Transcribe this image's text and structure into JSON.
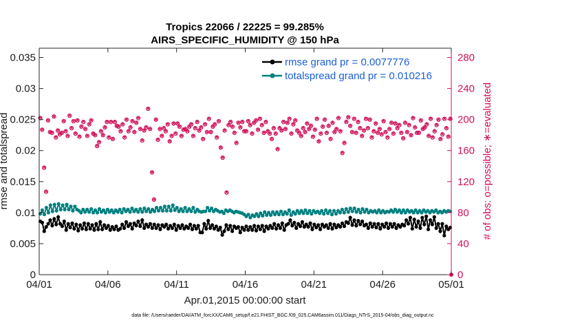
{
  "chart_data": {
    "type": "line",
    "title": "Tropics 22066 / 22225 = 99.285%",
    "subtitle": "AIRS_SPECIFIC_HUMIDITY @ 150 hPa",
    "xlabel": "Apr.01,2015 00:00:00 start",
    "ylabel": "rmse and totalspread",
    "ylabel_right": "# of obs: o=possible; ∗=evaluated",
    "footnote": "data file: /Users/raeder/DAI/ATM_forcXX/CAM6_setup/f.e21.FHIST_BGC.f09_025.CAM6assim.011/Diags_NTrS_2015-04/obs_diag_output.nc",
    "x_ticks": [
      "04/01",
      "04/06",
      "04/11",
      "04/16",
      "04/21",
      "04/26",
      "05/01"
    ],
    "x_range_days": [
      0,
      30
    ],
    "ylim_left": [
      0,
      0.0365
    ],
    "y_ticks_left": [
      "0",
      "0.005",
      "0.01",
      "0.015",
      "0.02",
      "0.025",
      "0.03",
      "0.035"
    ],
    "ylim_right": [
      0,
      292
    ],
    "y_ticks_right": [
      "0",
      "40",
      "80",
      "120",
      "160",
      "200",
      "240",
      "280"
    ],
    "series": [
      {
        "name": "rmse grand pr = 0.0077776",
        "color": "#000000",
        "axis": "left",
        "values": [
          0.0086,
          0.0084,
          0.007,
          0.0077,
          0.0082,
          0.0088,
          0.0079,
          0.009,
          0.0081,
          0.0093,
          0.0082,
          0.0078,
          0.0086,
          0.0072,
          0.0082,
          0.0076,
          0.0083,
          0.0074,
          0.0081,
          0.0071,
          0.008,
          0.0074,
          0.0083,
          0.0073,
          0.0082,
          0.0074,
          0.008,
          0.0072,
          0.0082,
          0.0073,
          0.0085,
          0.0073,
          0.008,
          0.0075,
          0.0079,
          0.0072,
          0.0077,
          0.0073,
          0.0078,
          0.0072,
          0.0074,
          0.0081,
          0.0075,
          0.0085,
          0.0078,
          0.0082,
          0.0074,
          0.0083,
          0.0079,
          0.0086,
          0.0078,
          0.0088,
          0.0075,
          0.0081,
          0.0077,
          0.0082,
          0.0075,
          0.0081,
          0.0075,
          0.008,
          0.0073,
          0.008,
          0.0077,
          0.0081,
          0.0074,
          0.0079,
          0.0075,
          0.0081,
          0.0072,
          0.0079,
          0.0075,
          0.008,
          0.0074,
          0.0078,
          0.0075,
          0.0081,
          0.0073,
          0.0079,
          0.0074,
          0.0079,
          0.0068,
          0.0068,
          0.0082,
          0.0074,
          0.0087,
          0.0075,
          0.008,
          0.0074,
          0.0078,
          0.0072,
          0.0076,
          0.0064,
          0.007,
          0.008,
          0.0073,
          0.0079,
          0.007,
          0.0078,
          0.0075,
          0.0077,
          0.0068,
          0.0076,
          0.0072,
          0.0078,
          0.0072,
          0.0077,
          0.0072,
          0.0079,
          0.0071,
          0.0078,
          0.0073,
          0.0079,
          0.007,
          0.0078,
          0.0074,
          0.0079,
          0.0075,
          0.0082,
          0.0074,
          0.008,
          0.0075,
          0.0083,
          0.0072,
          0.008,
          0.0082,
          0.0088,
          0.0079,
          0.0084,
          0.0075,
          0.0082,
          0.0078,
          0.0085,
          0.0077,
          0.0081,
          0.0077,
          0.0083,
          0.0073,
          0.0081,
          0.0076,
          0.008,
          0.0073,
          0.0081,
          0.0077,
          0.008,
          0.0075,
          0.0082,
          0.0074,
          0.0081,
          0.0076,
          0.008,
          0.0077,
          0.0083,
          0.0078,
          0.0085,
          0.0083,
          0.0092,
          0.008,
          0.0088,
          0.0079,
          0.0087,
          0.0081,
          0.0086,
          0.0079,
          0.0081,
          0.0075,
          0.0083,
          0.0077,
          0.0082,
          0.0076,
          0.0082,
          0.0074,
          0.0081,
          0.0077,
          0.0083,
          0.0075,
          0.0082,
          0.0077,
          0.0082,
          0.0075,
          0.008,
          0.0077,
          0.0081,
          0.0079,
          0.0088,
          0.0082,
          0.0092,
          0.0074,
          0.0089,
          0.0077,
          0.0086,
          0.0075,
          0.0092,
          0.0081,
          0.0094,
          0.0073,
          0.0088,
          0.0081,
          0.0093,
          0.0075,
          0.0082,
          0.007,
          0.0082,
          0.0063,
          0.0078,
          0.0073,
          0.0076
        ]
      },
      {
        "name": "totalspread grand pr = 0.010216",
        "color": "#008080",
        "axis": "left",
        "values": [
          0.0098,
          0.0104,
          0.0097,
          0.0108,
          0.01,
          0.0112,
          0.0102,
          0.0113,
          0.0103,
          0.0114,
          0.0105,
          0.0112,
          0.0105,
          0.0113,
          0.0105,
          0.011,
          0.0103,
          0.011,
          0.0105,
          0.0103,
          0.01,
          0.0105,
          0.0101,
          0.0105,
          0.0101,
          0.0106,
          0.01,
          0.0104,
          0.01,
          0.0106,
          0.0101,
          0.0104,
          0.01,
          0.0105,
          0.0101,
          0.0104,
          0.01,
          0.0104,
          0.0101,
          0.0105,
          0.01,
          0.0106,
          0.0102,
          0.0105,
          0.0101,
          0.0107,
          0.0102,
          0.0105,
          0.0101,
          0.0106,
          0.0101,
          0.0107,
          0.0102,
          0.0106,
          0.0101,
          0.0105,
          0.0102,
          0.0108,
          0.0103,
          0.0108,
          0.0103,
          0.011,
          0.0103,
          0.011,
          0.0103,
          0.0112,
          0.0104,
          0.0108,
          0.0102,
          0.0106,
          0.0102,
          0.0108,
          0.0102,
          0.0106,
          0.0102,
          0.0108,
          0.0101,
          0.0105,
          0.0102,
          0.0101,
          0.0102,
          0.0102,
          0.0108,
          0.0103,
          0.0107,
          0.0102,
          0.0105,
          0.0103,
          0.0101,
          0.0102,
          0.0099,
          0.0104,
          0.0102,
          0.0104,
          0.0102,
          0.01,
          0.0102,
          0.0101,
          0.01,
          0.0099,
          0.0097,
          0.0094,
          0.0097,
          0.0092,
          0.0096,
          0.0094,
          0.0098,
          0.0094,
          0.0099,
          0.0095,
          0.0101,
          0.0096,
          0.01,
          0.0096,
          0.0101,
          0.0097,
          0.0101,
          0.0097,
          0.0102,
          0.0097,
          0.0101,
          0.0098,
          0.0104,
          0.0096,
          0.0101,
          0.0098,
          0.0103,
          0.0099,
          0.0103,
          0.0099,
          0.0104,
          0.0099,
          0.0103,
          0.0098,
          0.0103,
          0.01,
          0.0102,
          0.0099,
          0.0103,
          0.0098,
          0.0104,
          0.0099,
          0.0103,
          0.0097,
          0.0103,
          0.0098,
          0.0103,
          0.01,
          0.0105,
          0.01,
          0.0106,
          0.0101,
          0.0107,
          0.0102,
          0.0107,
          0.0101,
          0.0105,
          0.01,
          0.0106,
          0.0101,
          0.0105,
          0.01,
          0.0103,
          0.0101,
          0.0103,
          0.01,
          0.0104,
          0.01,
          0.0103,
          0.01,
          0.0102,
          0.0101,
          0.0104,
          0.0101,
          0.0105,
          0.0101,
          0.0104,
          0.01,
          0.0104,
          0.01,
          0.0104,
          0.0101,
          0.0103,
          0.01,
          0.0104,
          0.01,
          0.0103,
          0.01,
          0.0104,
          0.0101,
          0.0103,
          0.01,
          0.0103,
          0.0101,
          0.0104,
          0.01,
          0.0102,
          0.01,
          0.0103,
          0.0101,
          0.0103,
          0.0102
        ]
      }
    ],
    "obs_counts": {
      "axis": "right",
      "color": "#d0105a",
      "possible_marker": "o",
      "evaluated_marker": "*",
      "values": [
        201,
        186,
        137,
        106,
        198,
        183,
        182,
        203,
        176,
        185,
        180,
        182,
        197,
        184,
        178,
        204,
        188,
        197,
        181,
        198,
        177,
        190,
        196,
        187,
        178,
        193,
        198,
        181,
        179,
        165,
        170,
        184,
        179,
        189,
        196,
        176,
        196,
        174,
        196,
        191,
        190,
        184,
        193,
        176,
        199,
        184,
        189,
        197,
        183,
        195,
        201,
        187,
        172,
        185,
        189,
        213,
        187,
        131,
        96,
        199,
        173,
        187,
        178,
        188,
        184,
        193,
        171,
        178,
        194,
        181,
        194,
        190,
        178,
        186,
        187,
        184,
        190,
        193,
        178,
        188,
        196,
        185,
        189,
        174,
        193,
        183,
        200,
        183,
        190,
        193,
        176,
        197,
        163,
        150,
        185,
        105,
        192,
        196,
        190,
        182,
        169,
        195,
        189,
        196,
        184,
        184,
        197,
        192,
        181,
        195,
        198,
        186,
        200,
        192,
        182,
        196,
        184,
        181,
        174,
        188,
        181,
        161,
        188,
        185,
        196,
        187,
        195,
        200,
        181,
        193,
        198,
        185,
        182,
        178,
        188,
        183,
        194,
        187,
        191,
        177,
        186,
        200,
        171,
        181,
        190,
        199,
        182,
        191,
        174,
        195,
        183,
        187,
        201,
        184,
        156,
        169,
        196,
        202,
        191,
        183,
        200,
        182,
        196,
        188,
        178,
        185,
        200,
        188,
        199,
        176,
        184,
        194,
        182,
        187,
        180,
        197,
        183,
        176,
        187,
        195,
        181,
        194,
        188,
        192,
        182,
        175,
        195,
        183,
        192,
        179,
        201,
        189,
        182,
        182,
        198,
        187,
        189,
        193,
        178,
        200,
        176,
        184,
        192,
        199,
        174,
        180,
        200,
        188,
        177,
        200
      ]
    }
  }
}
